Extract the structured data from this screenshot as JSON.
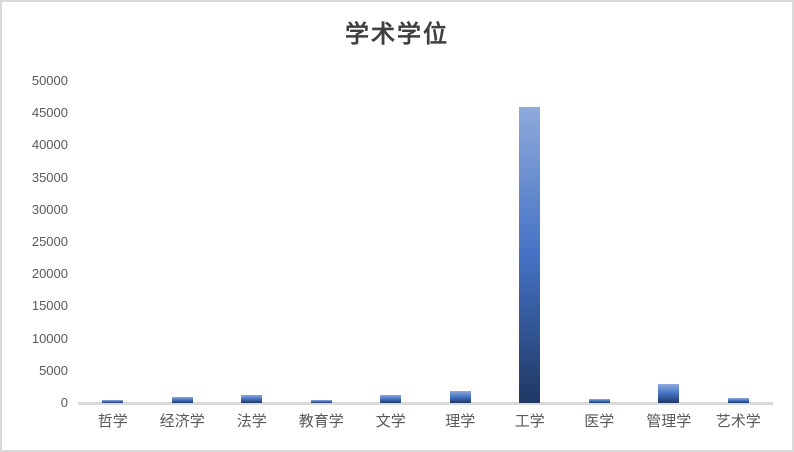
{
  "chart_data": {
    "type": "bar",
    "title": "学术学位",
    "categories": [
      "哲学",
      "经济学",
      "法学",
      "教育学",
      "文学",
      "理学",
      "工学",
      "医学",
      "管理学",
      "艺术学"
    ],
    "values": [
      500,
      900,
      1250,
      400,
      1250,
      1800,
      46000,
      600,
      3000,
      700
    ],
    "xlabel": "",
    "ylabel": "",
    "ylim": [
      0,
      50000
    ],
    "yticks": [
      0,
      5000,
      10000,
      15000,
      20000,
      25000,
      30000,
      35000,
      40000,
      45000,
      50000
    ],
    "grid": false,
    "legend": false,
    "colors": {
      "bar_gradient_top": "#8faadc",
      "bar_gradient_mid": "#4472c4",
      "bar_gradient_bottom": "#203864",
      "axis_line": "#d9d9d9",
      "tick_label": "#595959",
      "title": "#3f3f3f",
      "background": "#ffffff",
      "frame_border": "#d9d9d9"
    }
  }
}
